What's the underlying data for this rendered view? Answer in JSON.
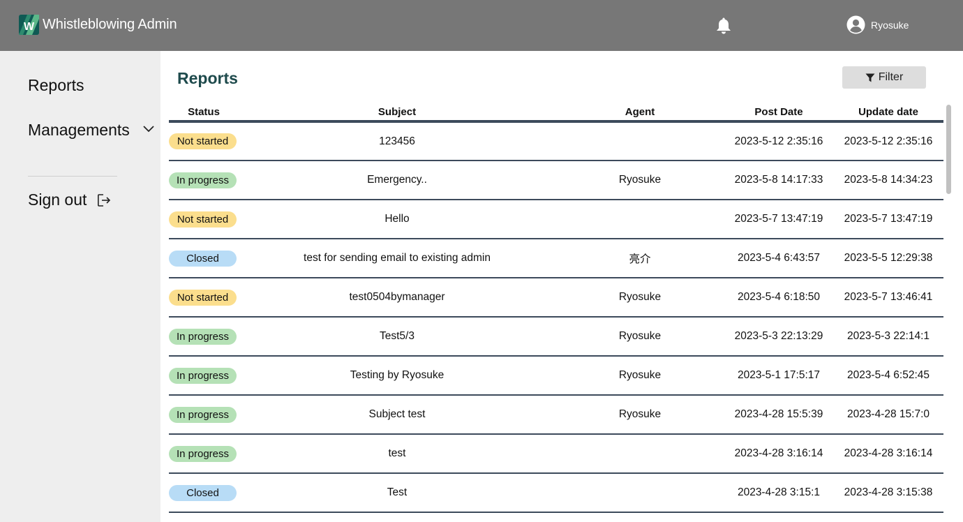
{
  "header": {
    "app_name": "Whistleblowing Admin",
    "user_name": "Ryosuke"
  },
  "sidebar": {
    "reports_label": "Reports",
    "managements_label": "Managements",
    "signout_label": "Sign out"
  },
  "main": {
    "title": "Reports",
    "filter_label": "Filter"
  },
  "table": {
    "headers": [
      "Status",
      "Subject",
      "Agent",
      "Post Date",
      "Update date"
    ],
    "rows": [
      {
        "status": "Not started",
        "subject": "123456",
        "agent": "",
        "post_date": "2023-5-12 2:35:16",
        "update_date": "2023-5-12 2:35:16"
      },
      {
        "status": "In progress",
        "subject": "Emergency..",
        "agent": "Ryosuke",
        "post_date": "2023-5-8 14:17:33",
        "update_date": "2023-5-8 14:34:23"
      },
      {
        "status": "Not started",
        "subject": "Hello",
        "agent": "",
        "post_date": "2023-5-7 13:47:19",
        "update_date": "2023-5-7 13:47:19"
      },
      {
        "status": "Closed",
        "subject": "test for sending email to existing admin",
        "agent": "亮介",
        "post_date": "2023-5-4 6:43:57",
        "update_date": "2023-5-5 12:29:38"
      },
      {
        "status": "Not started",
        "subject": "test0504bymanager",
        "agent": "Ryosuke",
        "post_date": "2023-5-4 6:18:50",
        "update_date": "2023-5-7 13:46:41"
      },
      {
        "status": "In progress",
        "subject": "Test5/3",
        "agent": "Ryosuke",
        "post_date": "2023-5-3 22:13:29",
        "update_date": "2023-5-3 22:14:1"
      },
      {
        "status": "In progress",
        "subject": "Testing by Ryosuke",
        "agent": "Ryosuke",
        "post_date": "2023-5-1 17:5:17",
        "update_date": "2023-5-4 6:52:45"
      },
      {
        "status": "In progress",
        "subject": "Subject test",
        "agent": "Ryosuke",
        "post_date": "2023-4-28 15:5:39",
        "update_date": "2023-4-28 15:7:0"
      },
      {
        "status": "In progress",
        "subject": "test",
        "agent": "",
        "post_date": "2023-4-28 3:16:14",
        "update_date": "2023-4-28 3:16:14"
      },
      {
        "status": "Closed",
        "subject": "Test",
        "agent": "",
        "post_date": "2023-4-28 3:15:1",
        "update_date": "2023-4-28 3:15:38"
      }
    ]
  },
  "colors": {
    "header_bg": "#777777",
    "sidebar_bg": "#eeeeee",
    "title_color": "#1e4a4c",
    "not_started": "#fbde8d",
    "in_progress": "#b5e1b6",
    "closed": "#b8dcf6",
    "row_border": "#3c4a5b"
  },
  "icons": {
    "logo": "ww-logo-icon",
    "notifications": "bell-icon",
    "account": "user-circle-icon",
    "expand": "chevron-down-icon",
    "signout": "sign-out-icon",
    "filter": "funnel-icon"
  }
}
